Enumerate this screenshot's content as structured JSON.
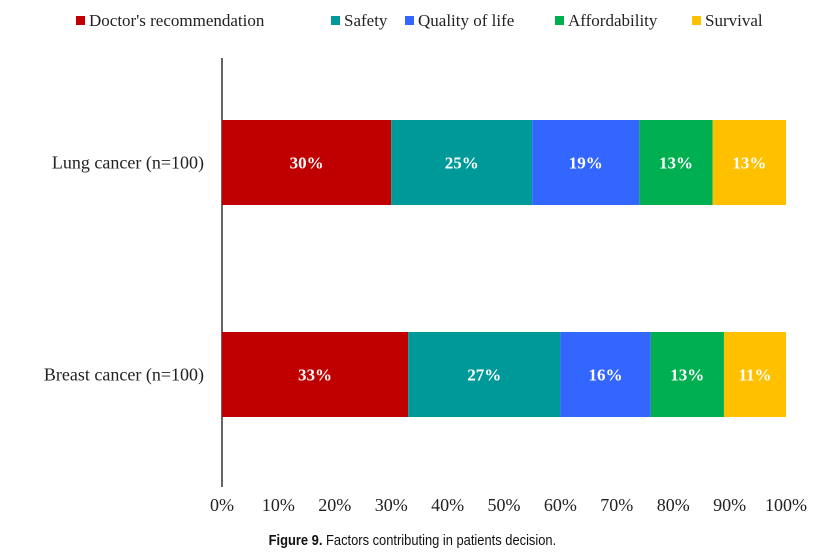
{
  "chart_data": {
    "type": "bar",
    "orientation": "horizontal",
    "stacked": true,
    "categories": [
      "Lung cancer (n=100)",
      "Breast cancer (n=100)"
    ],
    "series": [
      {
        "name": "Doctor's recommendation",
        "color": "#c00000",
        "values": [
          30,
          33
        ],
        "labels": [
          "30%",
          "33%"
        ]
      },
      {
        "name": "Safety",
        "color": "#009999",
        "values": [
          25,
          27
        ],
        "labels": [
          "25%",
          "27%"
        ]
      },
      {
        "name": "Quality of life",
        "color": "#3366ff",
        "values": [
          19,
          16
        ],
        "labels": [
          "19%",
          "16%"
        ]
      },
      {
        "name": "Affordability",
        "color": "#00b050",
        "values": [
          13,
          13
        ],
        "labels": [
          "13%",
          "13%"
        ]
      },
      {
        "name": "Survival",
        "color": "#ffc000",
        "values": [
          13,
          11
        ],
        "labels": [
          "13%",
          "11%"
        ]
      }
    ],
    "xlim": [
      0,
      100
    ],
    "xticks": [
      "0%",
      "10%",
      "20%",
      "30%",
      "40%",
      "50%",
      "60%",
      "70%",
      "80%",
      "90%",
      "100%"
    ],
    "grid": false,
    "legend": "top"
  },
  "caption": {
    "prefix": "Figure 9.",
    "text": " Factors contributing in patients decision."
  }
}
